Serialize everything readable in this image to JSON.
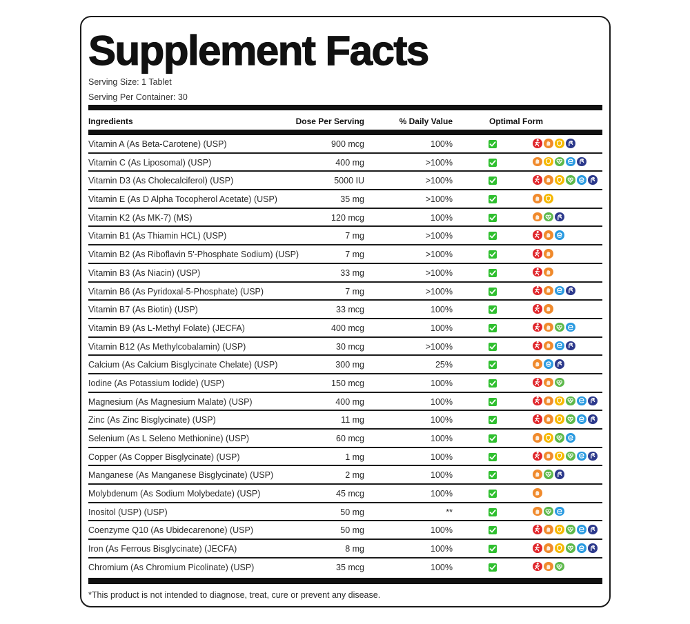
{
  "title": "Supplement Facts",
  "serving_size": "Serving Size: 1 Tablet",
  "servings_per_container": "Serving Per Container: 30",
  "columns": {
    "ingredients": "Ingredients",
    "dose": "Dose Per Serving",
    "daily_value": "% Daily Value",
    "optimal_form": "Optimal Form"
  },
  "benefit_icons": {
    "energy": {
      "name": "running-person-icon",
      "color": "#e0262b"
    },
    "strength": {
      "name": "hand-icon",
      "color": "#f08a2c"
    },
    "immunity": {
      "name": "shield-icon",
      "color": "#f5b800"
    },
    "heart": {
      "name": "heart-icon",
      "color": "#5cb84a"
    },
    "brain": {
      "name": "brain-icon",
      "color": "#2a9ae0"
    },
    "muscle": {
      "name": "flexed-arm-icon",
      "color": "#2d3a8c"
    }
  },
  "rows": [
    {
      "ingredient": "Vitamin A (As Beta-Carotene) (USP)",
      "dose": "900 mcg",
      "dv": "100%",
      "optimal": true,
      "icons": [
        "energy",
        "strength",
        "immunity",
        "muscle"
      ]
    },
    {
      "ingredient": "Vitamin C (As Liposomal) (USP)",
      "dose": "400 mg",
      "dv": ">100%",
      "optimal": true,
      "icons": [
        "strength",
        "immunity",
        "heart",
        "brain",
        "muscle"
      ]
    },
    {
      "ingredient": "Vitamin D3 (As Cholecalciferol) (USP)",
      "dose": "5000 IU",
      "dv": ">100%",
      "optimal": true,
      "icons": [
        "energy",
        "strength",
        "immunity",
        "heart",
        "brain",
        "muscle"
      ]
    },
    {
      "ingredient": "Vitamin E (As D Alpha Tocopherol Acetate) (USP)",
      "dose": "35 mg",
      "dv": ">100%",
      "optimal": true,
      "icons": [
        "strength",
        "immunity"
      ]
    },
    {
      "ingredient": "Vitamin K2 (As MK-7) (MS)",
      "dose": "120 mcg",
      "dv": "100%",
      "optimal": true,
      "icons": [
        "strength",
        "heart",
        "muscle"
      ]
    },
    {
      "ingredient": "Vitamin B1 (As Thiamin HCL) (USP)",
      "dose": "7 mg",
      "dv": ">100%",
      "optimal": true,
      "icons": [
        "energy",
        "strength",
        "brain"
      ]
    },
    {
      "ingredient": "Vitamin B2 (As Riboflavin 5'-Phosphate Sodium) (USP)",
      "dose": "7 mg",
      "dv": ">100%",
      "optimal": true,
      "icons": [
        "energy",
        "strength"
      ]
    },
    {
      "ingredient": "Vitamin B3 (As Niacin) (USP)",
      "dose": "33 mg",
      "dv": ">100%",
      "optimal": true,
      "icons": [
        "energy",
        "strength"
      ]
    },
    {
      "ingredient": "Vitamin B6 (As Pyridoxal-5-Phosphate) (USP)",
      "dose": "7 mg",
      "dv": ">100%",
      "optimal": true,
      "icons": [
        "energy",
        "strength",
        "brain",
        "muscle"
      ]
    },
    {
      "ingredient": "Vitamin B7 (As Biotin) (USP)",
      "dose": "33 mcg",
      "dv": "100%",
      "optimal": true,
      "icons": [
        "energy",
        "strength"
      ]
    },
    {
      "ingredient": "Vitamin B9 (As L-Methyl Folate) (JECFA)",
      "dose": "400 mcg",
      "dv": "100%",
      "optimal": true,
      "icons": [
        "energy",
        "strength",
        "heart",
        "brain"
      ]
    },
    {
      "ingredient": "Vitamin B12 (As Methylcobalamin) (USP)",
      "dose": "30 mcg",
      "dv": ">100%",
      "optimal": true,
      "icons": [
        "energy",
        "strength",
        "brain",
        "muscle"
      ]
    },
    {
      "ingredient": "Calcium (As Calcium Bisglycinate Chelate) (USP)",
      "dose": "300 mg",
      "dv": "25%",
      "optimal": true,
      "icons": [
        "strength",
        "brain",
        "muscle"
      ]
    },
    {
      "ingredient": "Iodine (As Potassium Iodide) (USP)",
      "dose": "150 mcg",
      "dv": "100%",
      "optimal": true,
      "icons": [
        "energy",
        "strength",
        "heart"
      ]
    },
    {
      "ingredient": "Magnesium (As Magnesium Malate) (USP)",
      "dose": "400 mg",
      "dv": "100%",
      "optimal": true,
      "icons": [
        "energy",
        "strength",
        "immunity",
        "heart",
        "brain",
        "muscle"
      ]
    },
    {
      "ingredient": "Zinc (As Zinc Bisglycinate) (USP)",
      "dose": "11 mg",
      "dv": "100%",
      "optimal": true,
      "icons": [
        "energy",
        "strength",
        "immunity",
        "heart",
        "brain",
        "muscle"
      ]
    },
    {
      "ingredient": "Selenium (As L Seleno Methionine) (USP)",
      "dose": "60 mcg",
      "dv": "100%",
      "optimal": true,
      "icons": [
        "strength",
        "immunity",
        "heart",
        "brain"
      ]
    },
    {
      "ingredient": "Copper (As Copper Bisglycinate) (USP)",
      "dose": "1 mg",
      "dv": "100%",
      "optimal": true,
      "icons": [
        "energy",
        "strength",
        "immunity",
        "heart",
        "brain",
        "muscle"
      ]
    },
    {
      "ingredient": "Manganese (As Manganese Bisglycinate) (USP)",
      "dose": "2 mg",
      "dv": "100%",
      "optimal": true,
      "icons": [
        "strength",
        "heart",
        "muscle"
      ]
    },
    {
      "ingredient": "Molybdenum (As Sodium Molybedate) (USP)",
      "dose": "45 mcg",
      "dv": "100%",
      "optimal": true,
      "icons": [
        "strength"
      ]
    },
    {
      "ingredient": "Inositol (USP) (USP)",
      "dose": "50 mg",
      "dv": "**",
      "optimal": true,
      "icons": [
        "strength",
        "heart",
        "brain"
      ]
    },
    {
      "ingredient": "Coenzyme Q10 (As Ubidecarenone) (USP)",
      "dose": "50 mg",
      "dv": "100%",
      "optimal": true,
      "icons": [
        "energy",
        "strength",
        "immunity",
        "heart",
        "brain",
        "muscle"
      ]
    },
    {
      "ingredient": "Iron (As Ferrous Bisglycinate) (JECFA)",
      "dose": "8 mg",
      "dv": "100%",
      "optimal": true,
      "icons": [
        "energy",
        "strength",
        "immunity",
        "heart",
        "brain",
        "muscle"
      ]
    },
    {
      "ingredient": "Chromium (As Chromium Picolinate) (USP)",
      "dose": "35 mcg",
      "dv": "100%",
      "optimal": true,
      "icons": [
        "energy",
        "strength",
        "heart"
      ]
    }
  ],
  "footnote": "*This product is not intended to diagnose, treat, cure or prevent any disease."
}
